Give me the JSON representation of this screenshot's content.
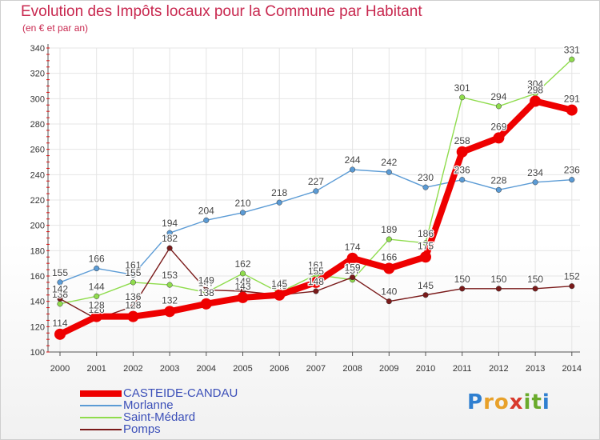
{
  "title": "Evolution des Impôts locaux pour la Commune par Habitant",
  "subtitle": "(en € et par an)",
  "logo": {
    "text": "Proxiti",
    "letters": [
      {
        "ch": "P",
        "color": "#2f7fd0"
      },
      {
        "ch": "r",
        "color": "#e8a12a"
      },
      {
        "ch": "o",
        "color": "#e8a12a"
      },
      {
        "ch": "x",
        "color": "#d83a2c"
      },
      {
        "ch": "i",
        "color": "#6aab2c"
      },
      {
        "ch": "t",
        "color": "#6aab2c"
      },
      {
        "ch": "i",
        "color": "#2f7fd0"
      }
    ]
  },
  "chart_data": {
    "type": "line",
    "title": "Evolution des Impôts locaux pour la Commune par Habitant",
    "ylabel": "(en € et par an)",
    "xlabel": "",
    "x": [
      "2000",
      "2001",
      "2002",
      "2003",
      "2004",
      "2005",
      "2006",
      "2007",
      "2008",
      "2009",
      "2010",
      "2011",
      "2012",
      "2013",
      "2014"
    ],
    "ylim": [
      100,
      340
    ],
    "yticks": [
      100,
      120,
      140,
      160,
      180,
      200,
      220,
      240,
      260,
      280,
      300,
      320,
      340
    ],
    "grid": true,
    "legend_position": "bottom-left",
    "series": [
      {
        "name": "Morlanne",
        "color": "#5b9bd5",
        "emphasis": false,
        "values": [
          155,
          166,
          161,
          194,
          204,
          210,
          218,
          227,
          244,
          242,
          230,
          236,
          228,
          234,
          236
        ]
      },
      {
        "name": "Saint-Médard",
        "color": "#8fdc4d",
        "emphasis": false,
        "values": [
          138,
          144,
          155,
          153,
          147,
          162,
          147,
          161,
          157,
          189,
          186,
          301,
          294,
          304,
          331
        ]
      },
      {
        "name": "Pomps",
        "color": "#7a1a1a",
        "emphasis": false,
        "values": [
          142,
          126,
          136,
          182,
          149,
          148,
          145,
          148,
          159,
          140,
          145,
          150,
          150,
          150,
          152
        ]
      },
      {
        "name": "CASTEIDE-CANDAU",
        "color": "#ee0000",
        "emphasis": true,
        "values": [
          114,
          128,
          128,
          132,
          138,
          143,
          145,
          155,
          174,
          166,
          175,
          258,
          269,
          298,
          291
        ]
      }
    ]
  }
}
